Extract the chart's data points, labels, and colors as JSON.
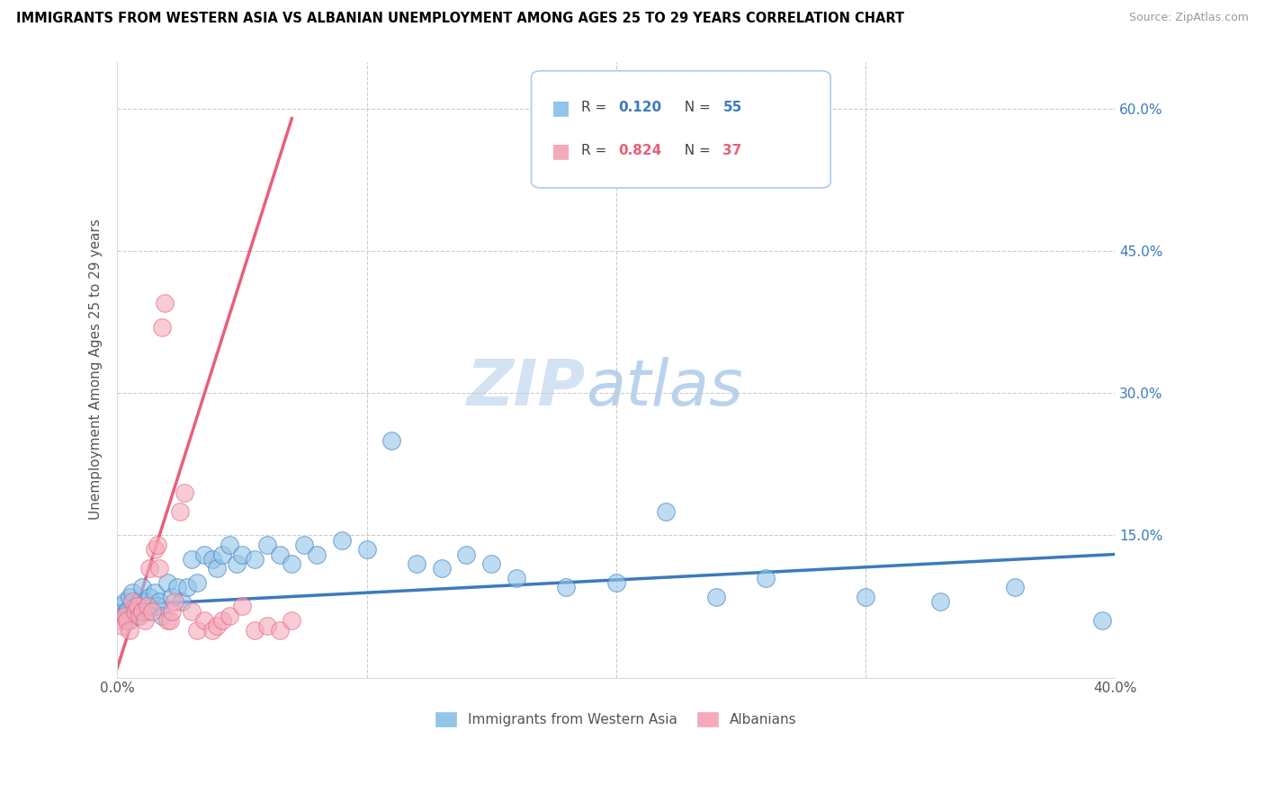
{
  "title": "IMMIGRANTS FROM WESTERN ASIA VS ALBANIAN UNEMPLOYMENT AMONG AGES 25 TO 29 YEARS CORRELATION CHART",
  "source": "Source: ZipAtlas.com",
  "ylabel": "Unemployment Among Ages 25 to 29 years",
  "xlim": [
    0.0,
    0.4
  ],
  "ylim": [
    0.0,
    0.65
  ],
  "yticks": [
    0.0,
    0.15,
    0.3,
    0.45,
    0.6
  ],
  "ytick_labels": [
    "",
    "15.0%",
    "30.0%",
    "45.0%",
    "60.0%"
  ],
  "xticks": [
    0.0,
    0.1,
    0.2,
    0.3,
    0.4
  ],
  "xtick_labels": [
    "0.0%",
    "",
    "",
    "",
    "40.0%"
  ],
  "legend_blue_r": "0.120",
  "legend_blue_n": "55",
  "legend_pink_r": "0.824",
  "legend_pink_n": "37",
  "legend_label_blue": "Immigrants from Western Asia",
  "legend_label_pink": "Albanians",
  "blue_color": "#92C5E8",
  "pink_color": "#F4AABB",
  "blue_line_color": "#3B7ABF",
  "pink_line_color": "#E8607A",
  "watermark_zip": "ZIP",
  "watermark_atlas": "atlas",
  "blue_scatter_x": [
    0.001,
    0.002,
    0.003,
    0.004,
    0.005,
    0.005,
    0.006,
    0.007,
    0.008,
    0.009,
    0.01,
    0.011,
    0.012,
    0.013,
    0.015,
    0.016,
    0.017,
    0.018,
    0.02,
    0.022,
    0.024,
    0.026,
    0.028,
    0.03,
    0.032,
    0.035,
    0.038,
    0.04,
    0.042,
    0.045,
    0.048,
    0.05,
    0.055,
    0.06,
    0.065,
    0.07,
    0.075,
    0.08,
    0.09,
    0.1,
    0.11,
    0.12,
    0.13,
    0.14,
    0.15,
    0.16,
    0.18,
    0.2,
    0.22,
    0.24,
    0.26,
    0.3,
    0.33,
    0.36,
    0.395
  ],
  "blue_scatter_y": [
    0.075,
    0.065,
    0.08,
    0.07,
    0.085,
    0.06,
    0.09,
    0.075,
    0.065,
    0.08,
    0.095,
    0.08,
    0.07,
    0.085,
    0.09,
    0.075,
    0.08,
    0.065,
    0.1,
    0.085,
    0.095,
    0.08,
    0.095,
    0.125,
    0.1,
    0.13,
    0.125,
    0.115,
    0.13,
    0.14,
    0.12,
    0.13,
    0.125,
    0.14,
    0.13,
    0.12,
    0.14,
    0.13,
    0.145,
    0.135,
    0.25,
    0.12,
    0.115,
    0.13,
    0.12,
    0.105,
    0.095,
    0.1,
    0.175,
    0.085,
    0.105,
    0.085,
    0.08,
    0.095,
    0.06
  ],
  "pink_scatter_x": [
    0.001,
    0.002,
    0.003,
    0.004,
    0.005,
    0.006,
    0.007,
    0.008,
    0.009,
    0.01,
    0.011,
    0.012,
    0.013,
    0.014,
    0.015,
    0.016,
    0.017,
    0.018,
    0.019,
    0.02,
    0.021,
    0.022,
    0.023,
    0.025,
    0.027,
    0.03,
    0.032,
    0.035,
    0.038,
    0.04,
    0.042,
    0.045,
    0.05,
    0.055,
    0.06,
    0.065,
    0.07
  ],
  "pink_scatter_y": [
    0.06,
    0.055,
    0.065,
    0.06,
    0.05,
    0.08,
    0.07,
    0.075,
    0.065,
    0.07,
    0.06,
    0.075,
    0.115,
    0.07,
    0.135,
    0.14,
    0.115,
    0.37,
    0.395,
    0.06,
    0.06,
    0.07,
    0.08,
    0.175,
    0.195,
    0.07,
    0.05,
    0.06,
    0.05,
    0.055,
    0.06,
    0.065,
    0.075,
    0.05,
    0.055,
    0.05,
    0.06
  ],
  "blue_line_x": [
    0.0,
    0.4
  ],
  "blue_line_y": [
    0.076,
    0.13
  ],
  "pink_line_x": [
    0.0,
    0.07
  ],
  "pink_line_y": [
    0.01,
    0.59
  ]
}
